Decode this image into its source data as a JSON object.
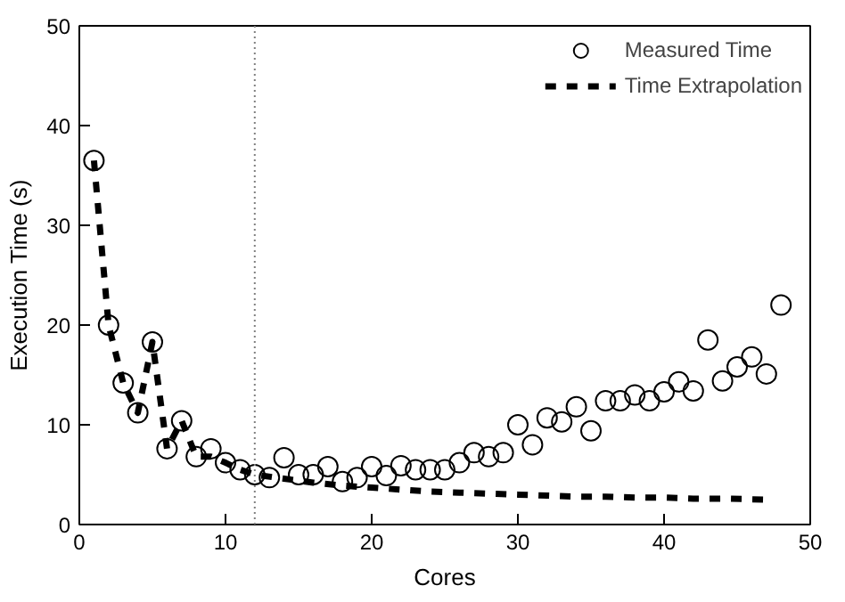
{
  "chart_data": {
    "type": "scatter",
    "xlabel": "Cores",
    "ylabel": "Execution Time (s)",
    "xlim": [
      0,
      50
    ],
    "ylim": [
      0,
      50
    ],
    "xticks": [
      0,
      10,
      20,
      30,
      40,
      50
    ],
    "yticks": [
      0,
      10,
      20,
      30,
      40,
      50
    ],
    "grid": false,
    "legend": "top right",
    "ref_lines": [
      {
        "axis": "x",
        "value": 12,
        "color": "#808080",
        "line_style": "dotted"
      }
    ],
    "series": [
      {
        "name": "Measured Time",
        "marker": "circle",
        "color": "#000000",
        "x": [
          1,
          2,
          3,
          4,
          5,
          6,
          7,
          8,
          9,
          10,
          11,
          12,
          13,
          14,
          15,
          16,
          17,
          18,
          19,
          20,
          21,
          22,
          23,
          24,
          25,
          26,
          27,
          28,
          29,
          30,
          31,
          32,
          33,
          34,
          35,
          36,
          37,
          38,
          39,
          40,
          41,
          42,
          43,
          44,
          45,
          46,
          47,
          48
        ],
        "values": [
          36.5,
          20,
          14.2,
          11.2,
          18.3,
          7.6,
          10.4,
          6.8,
          7.6,
          6.2,
          5.5,
          5.0,
          4.7,
          6.7,
          5.0,
          5.0,
          5.8,
          4.3,
          4.7,
          5.8,
          4.9,
          5.9,
          5.5,
          5.5,
          5.5,
          6.2,
          7.2,
          6.8,
          7.2,
          10.0,
          8.0,
          10.7,
          10.3,
          11.8,
          9.4,
          12.4,
          12.4,
          13.0,
          12.4,
          13.3,
          14.3,
          13.4,
          18.5,
          14.4,
          15.8,
          16.8,
          15.1,
          22.0
        ]
      },
      {
        "name": "Time Extrapolation",
        "type": "line",
        "marker": "none",
        "line_style": "dashed",
        "color": "#000000",
        "x": [
          1,
          2,
          3,
          4,
          5,
          6,
          7,
          8,
          9,
          10,
          11,
          12,
          14,
          16,
          18,
          20,
          22,
          24,
          26,
          28,
          30,
          32,
          34,
          36,
          38,
          40,
          42,
          44,
          47
        ],
        "values": [
          36.5,
          20,
          14.2,
          11.2,
          18.3,
          7.6,
          10.4,
          6.8,
          6.8,
          6.2,
          5.5,
          5.0,
          4.6,
          4.2,
          3.9,
          3.7,
          3.5,
          3.3,
          3.2,
          3.1,
          3.0,
          2.9,
          2.8,
          2.8,
          2.7,
          2.7,
          2.6,
          2.6,
          2.5
        ]
      }
    ]
  }
}
